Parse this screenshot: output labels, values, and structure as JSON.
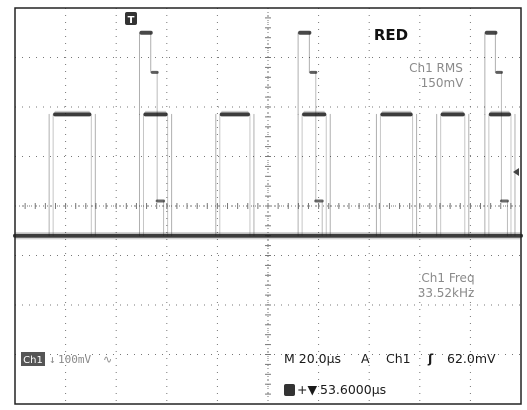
{
  "title": "RED",
  "trigger_marker": "T",
  "measurements": {
    "rms_label": "Ch1 RMS",
    "rms_value": "150mV",
    "freq_label": "Ch1 Freq",
    "freq_value": "33.52kHz"
  },
  "status": {
    "channel_badge": "Ch1",
    "volts_per_div": "100mV",
    "bandwidth_symbol": "∿",
    "timebase": "M 20.0µs",
    "trigger_mode": "A",
    "trigger_source": "Ch1",
    "trigger_slope": "ʃ",
    "trigger_level": "62.0mV",
    "position_prefix": "+▼",
    "position_value": "53.6000µs"
  },
  "colors": {
    "trace": "#1a1a1a",
    "grid": "#777777",
    "frame": "#222222"
  },
  "grid": {
    "horizontal_divisions": 10,
    "vertical_divisions": 8
  },
  "waveform": {
    "levels_in_divisions": {
      "baseline": 0,
      "mid": 2.45,
      "high": 4.1,
      "spike": 3.3,
      "bump": 0.7
    },
    "pulses_in_divisions": [
      {
        "kind": "plain",
        "start": 0.85,
        "end": 2.0
      },
      {
        "kind": "spike",
        "start": 3.1,
        "end": 3.9
      },
      {
        "kind": "plain",
        "start": 5.0,
        "end": 5.95
      },
      {
        "kind": "spike",
        "start": 7.05,
        "end": 7.85
      },
      {
        "kind": "plain",
        "start": 9.0,
        "end": 10.0
      }
    ],
    "extra_pulses_in_divisions": [
      {
        "kind": "plain",
        "start": 10.5,
        "end": 11.3
      },
      {
        "kind": "spike",
        "start": 11.7,
        "end": 12.45
      }
    ]
  }
}
